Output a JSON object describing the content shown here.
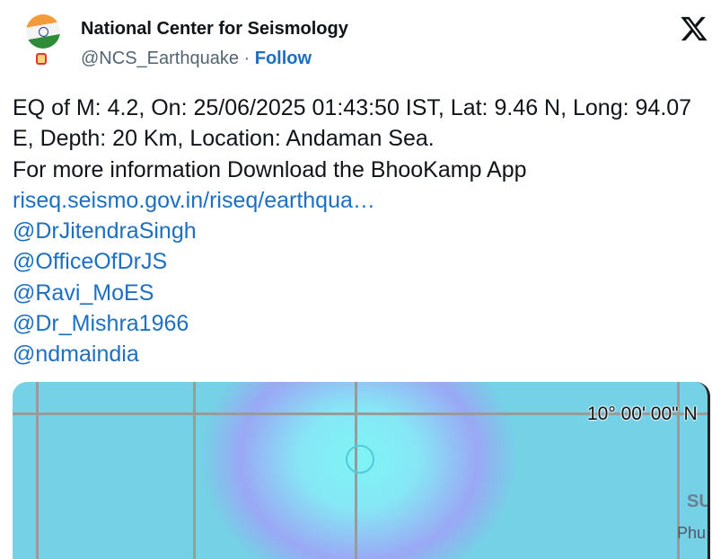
{
  "header": {
    "name": "National Center for Seismology",
    "handle": "@NCS_Earthquake",
    "separator": " · ",
    "follow_label": "Follow"
  },
  "tweet": {
    "line1": "EQ of M: 4.2, On: 25/06/2025 01:43:50 IST, Lat: 9.46 N, Long: 94.07 E, Depth: 20 Km, Location: Andaman Sea.",
    "line2": "For more information Download the BhooKamp App",
    "links": [
      "riseq.seismo.gov.in/riseq/earthqua…",
      "@DrJitendraSingh",
      "@OfficeOfDrJS",
      "@Ravi_MoES",
      "@Dr_Mishra1966",
      "@ndmaindia"
    ]
  },
  "map": {
    "lat_label": "10° 00' 00\" N",
    "label_su": "SU",
    "label_phu": "Phu"
  },
  "colors": {
    "link": "#1d6fc2",
    "sea": "#74d1e6"
  }
}
